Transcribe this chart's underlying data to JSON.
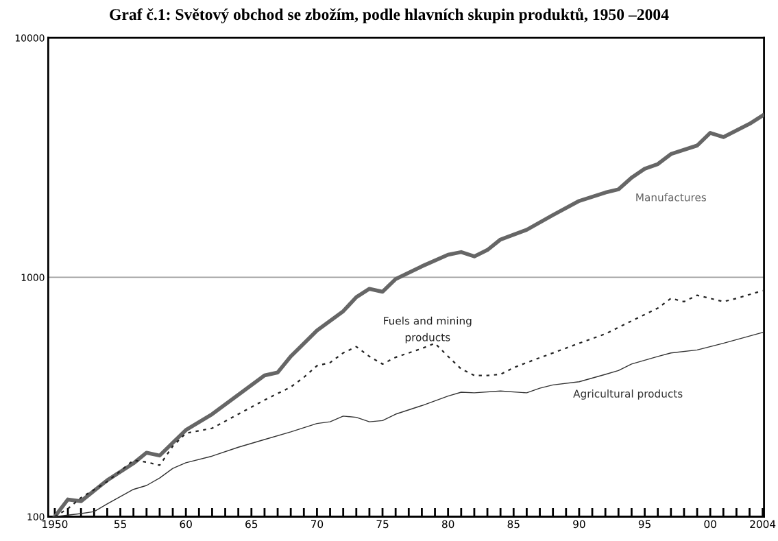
{
  "chart_data": {
    "type": "line",
    "title": "Graf č.1: Světový obchod se zbožím, podle hlavních skupin produktů, 1950 –2004",
    "log": "y",
    "grid": false,
    "legend": false,
    "marker": "none",
    "xlim": [
      1949.5,
      2004.1
    ],
    "ylim": [
      100,
      10000
    ],
    "yticks": [
      100,
      1000,
      10000
    ],
    "xticks": [
      {
        "value": 1950,
        "label": "1950"
      },
      {
        "value": 1951,
        "label": null
      },
      {
        "value": 1952,
        "label": null
      },
      {
        "value": 1953,
        "label": null
      },
      {
        "value": 1954,
        "label": null
      },
      {
        "value": 1955,
        "label": "55"
      },
      {
        "value": 1956,
        "label": null
      },
      {
        "value": 1957,
        "label": null
      },
      {
        "value": 1958,
        "label": null
      },
      {
        "value": 1959,
        "label": null
      },
      {
        "value": 1960,
        "label": "60"
      },
      {
        "value": 1961,
        "label": null
      },
      {
        "value": 1962,
        "label": null
      },
      {
        "value": 1963,
        "label": null
      },
      {
        "value": 1964,
        "label": null
      },
      {
        "value": 1965,
        "label": "65"
      },
      {
        "value": 1966,
        "label": null
      },
      {
        "value": 1967,
        "label": null
      },
      {
        "value": 1968,
        "label": null
      },
      {
        "value": 1969,
        "label": null
      },
      {
        "value": 1970,
        "label": "70"
      },
      {
        "value": 1971,
        "label": null
      },
      {
        "value": 1972,
        "label": null
      },
      {
        "value": 1973,
        "label": null
      },
      {
        "value": 1974,
        "label": null
      },
      {
        "value": 1975,
        "label": "75"
      },
      {
        "value": 1976,
        "label": null
      },
      {
        "value": 1977,
        "label": null
      },
      {
        "value": 1978,
        "label": null
      },
      {
        "value": 1979,
        "label": null
      },
      {
        "value": 1980,
        "label": "80"
      },
      {
        "value": 1981,
        "label": null
      },
      {
        "value": 1982,
        "label": null
      },
      {
        "value": 1983,
        "label": null
      },
      {
        "value": 1984,
        "label": null
      },
      {
        "value": 1985,
        "label": "85"
      },
      {
        "value": 1986,
        "label": null
      },
      {
        "value": 1987,
        "label": null
      },
      {
        "value": 1988,
        "label": null
      },
      {
        "value": 1989,
        "label": null
      },
      {
        "value": 1990,
        "label": "90"
      },
      {
        "value": 1991,
        "label": null
      },
      {
        "value": 1992,
        "label": null
      },
      {
        "value": 1993,
        "label": null
      },
      {
        "value": 1994,
        "label": null
      },
      {
        "value": 1995,
        "label": "95"
      },
      {
        "value": 1996,
        "label": null
      },
      {
        "value": 1997,
        "label": null
      },
      {
        "value": 1998,
        "label": null
      },
      {
        "value": 1999,
        "label": null
      },
      {
        "value": 2000,
        "label": "00"
      },
      {
        "value": 2001,
        "label": null
      },
      {
        "value": 2002,
        "label": null
      },
      {
        "value": 2003,
        "label": null
      },
      {
        "value": 2004,
        "label": "2004"
      }
    ],
    "ref_lines": [
      {
        "axis": "y",
        "value": 1000,
        "color": "#a0a0a0"
      }
    ],
    "series": [
      {
        "name": "Manufactures",
        "color": "#666666",
        "line_style": "solid",
        "x": [
          1950,
          1951,
          1952,
          1954,
          1956,
          1957,
          1958,
          1960,
          1962,
          1964,
          1966,
          1967,
          1968,
          1970,
          1972,
          1973,
          1974,
          1975,
          1976,
          1978,
          1980,
          1981,
          1982,
          1983,
          1984,
          1986,
          1988,
          1990,
          1992,
          1993,
          1994,
          1995,
          1996,
          1997,
          1999,
          2000,
          2001,
          2003,
          2004
        ],
        "values": [
          100,
          118,
          116,
          142,
          167,
          185,
          180,
          230,
          268,
          323,
          389,
          400,
          467,
          599,
          721,
          826,
          895,
          870,
          983,
          1111,
          1242,
          1274,
          1222,
          1300,
          1438,
          1579,
          1820,
          2084,
          2259,
          2330,
          2606,
          2840,
          2970,
          3270,
          3550,
          4010,
          3850,
          4375,
          4740
        ]
      },
      {
        "name": "Fuels and mining\nproducts",
        "color": "#222222",
        "line_style": "dotted",
        "x": [
          1950,
          1951,
          1952,
          1954,
          1956,
          1957,
          1958,
          1959,
          1960,
          1962,
          1964,
          1966,
          1968,
          1969,
          1970,
          1971,
          1972,
          1973,
          1974,
          1975,
          1976,
          1978,
          1979,
          1980,
          1981,
          1982,
          1983,
          1984,
          1985,
          1986,
          1988,
          1990,
          1992,
          1994,
          1996,
          1997,
          1998,
          1999,
          2000,
          2001,
          2002,
          2004
        ],
        "values": [
          100,
          108,
          120,
          140,
          172,
          169,
          164,
          197,
          223,
          234,
          268,
          307,
          348,
          382,
          427,
          440,
          483,
          513,
          467,
          434,
          463,
          504,
          530,
          467,
          414,
          389,
          389,
          393,
          419,
          440,
          483,
          530,
          580,
          657,
          743,
          816,
          791,
          841,
          816,
          791,
          816,
          879
        ]
      },
      {
        "name": "Agricultural products",
        "color": "#333333",
        "line_style": "solid",
        "x": [
          1950,
          1952,
          1953,
          1954,
          1956,
          1957,
          1958,
          1959,
          1960,
          1962,
          1964,
          1966,
          1968,
          1970,
          1971,
          1972,
          1973,
          1974,
          1975,
          1976,
          1978,
          1980,
          1981,
          1982,
          1984,
          1986,
          1987,
          1988,
          1990,
          1992,
          1993,
          1994,
          1996,
          1997,
          1999,
          2001,
          2004
        ],
        "values": [
          100,
          103,
          105,
          113,
          130,
          135,
          145,
          159,
          168,
          179,
          195,
          210,
          226,
          245,
          249,
          263,
          260,
          249,
          252,
          268,
          291,
          319,
          331,
          329,
          335,
          329,
          344,
          355,
          366,
          393,
          408,
          434,
          467,
          483,
          497,
          530,
          588
        ]
      }
    ]
  }
}
